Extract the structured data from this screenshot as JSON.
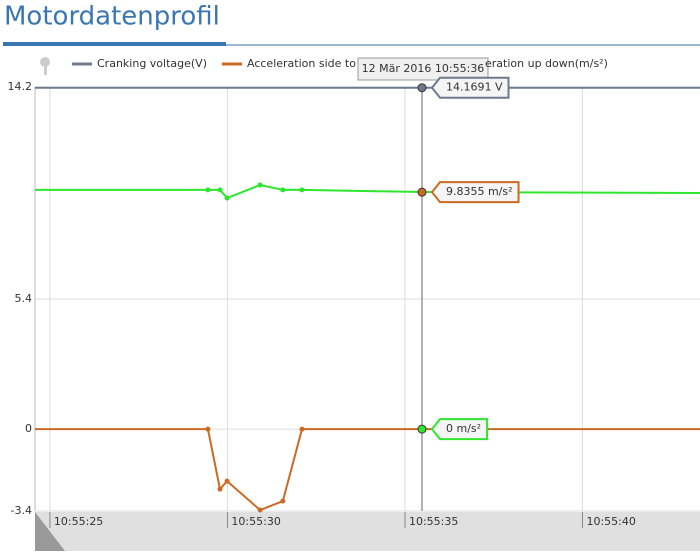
{
  "header": {
    "title": "Motordatenprofil"
  },
  "chart_data": {
    "type": "line",
    "xlim": [
      24.58,
      43.31
    ],
    "xticks": [
      {
        "value": 25,
        "label": "10:55:25"
      },
      {
        "value": 30,
        "label": "10:55:30"
      },
      {
        "value": 35,
        "label": "10:55:35"
      },
      {
        "value": 40,
        "label": "10:55:40"
      }
    ],
    "ylim": [
      -3.4,
      14.2
    ],
    "yticks": [
      -3.4,
      0,
      5.4,
      14.2
    ],
    "grid": true,
    "series": [
      {
        "name": "Cranking voltage(V)",
        "color": "#6d7b8d",
        "x": [
          24.58,
          43.31
        ],
        "values": [
          14.17,
          14.17
        ]
      },
      {
        "name": "Acceleration side to",
        "color": "#cc6a24",
        "x": [
          24.58,
          29.45,
          29.79,
          29.99,
          30.92,
          31.56,
          32.1,
          43.31
        ],
        "values": [
          0,
          0,
          -2.49,
          -2.16,
          -3.36,
          -2.99,
          0,
          0
        ]
      },
      {
        "name": "eration up down(m/s²)",
        "color": "#2ee62e",
        "x": [
          24.58,
          29.45,
          29.79,
          29.99,
          30.92,
          31.56,
          32.1,
          35.48,
          43.31
        ],
        "values": [
          9.93,
          9.93,
          9.93,
          9.59,
          10.13,
          9.93,
          9.93,
          9.84,
          9.8
        ]
      }
    ],
    "cursor": {
      "label": "12 Mär 2016 10:55:36",
      "x": 35.48,
      "values": [
        14.1691,
        9.8355,
        0
      ],
      "value_labels": [
        "14.1691 V",
        "9.8355 m/s²",
        "0 m/s²"
      ]
    }
  }
}
